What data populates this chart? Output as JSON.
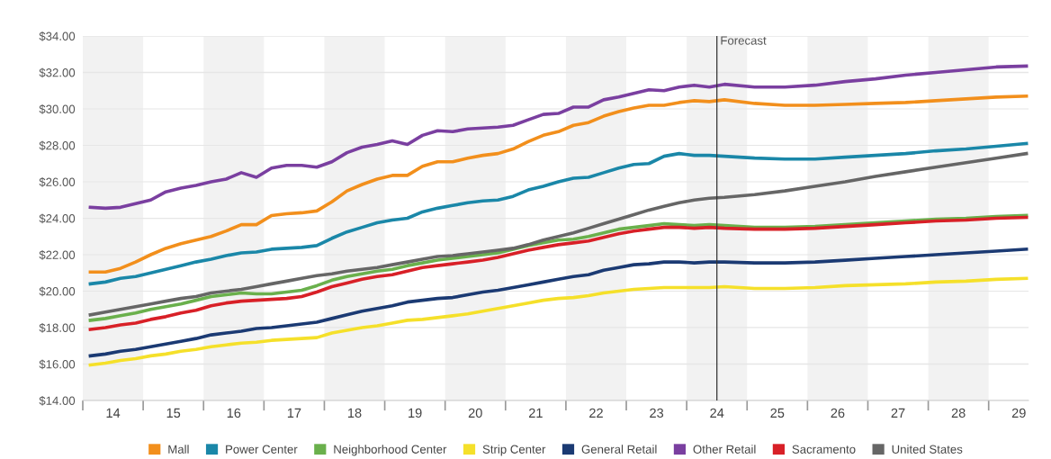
{
  "chart_data": {
    "type": "line",
    "x": [
      13.625,
      13.875,
      14.125,
      14.375,
      14.625,
      14.875,
      15.125,
      15.375,
      15.625,
      15.875,
      16.125,
      16.375,
      16.625,
      16.875,
      17.125,
      17.375,
      17.625,
      17.875,
      18.125,
      18.375,
      18.625,
      18.875,
      19.125,
      19.375,
      19.625,
      19.875,
      20.125,
      20.375,
      20.625,
      20.875,
      21.125,
      21.375,
      21.625,
      21.875,
      22.125,
      22.375,
      22.625,
      22.875,
      23.125,
      23.375,
      23.625,
      23.875,
      24.125,
      24.625,
      25.125,
      25.625,
      26.125,
      26.625,
      27.125,
      27.625,
      28.125,
      28.625,
      29.125
    ],
    "series": [
      {
        "name": "Mall",
        "color": "#f28f1c",
        "values": [
          21.05,
          21.05,
          21.25,
          21.6,
          22.0,
          22.35,
          22.6,
          22.8,
          23.0,
          23.3,
          23.65,
          23.65,
          24.15,
          24.25,
          24.3,
          24.4,
          24.9,
          25.5,
          25.85,
          26.15,
          26.35,
          26.35,
          26.85,
          27.1,
          27.1,
          27.3,
          27.45,
          27.55,
          27.8,
          28.2,
          28.55,
          28.75,
          29.1,
          29.25,
          29.6,
          29.85,
          30.05,
          30.2,
          30.2,
          30.35,
          30.45,
          30.4,
          30.5,
          30.3,
          30.2,
          30.2,
          30.25,
          30.3,
          30.35,
          30.45,
          30.55,
          30.65,
          30.7
        ]
      },
      {
        "name": "Power Center",
        "color": "#1a87a8",
        "values": [
          20.4,
          20.5,
          20.7,
          20.8,
          21.0,
          21.2,
          21.4,
          21.6,
          21.75,
          21.95,
          22.1,
          22.15,
          22.3,
          22.35,
          22.4,
          22.5,
          22.9,
          23.25,
          23.5,
          23.75,
          23.9,
          24.0,
          24.35,
          24.55,
          24.7,
          24.85,
          24.95,
          25.0,
          25.2,
          25.55,
          25.75,
          26.0,
          26.2,
          26.25,
          26.5,
          26.75,
          26.95,
          27.0,
          27.4,
          27.55,
          27.45,
          27.45,
          27.4,
          27.3,
          27.25,
          27.25,
          27.35,
          27.45,
          27.55,
          27.7,
          27.8,
          27.95,
          28.1
        ]
      },
      {
        "name": "Neighborhood Center",
        "color": "#6ab04c",
        "values": [
          18.4,
          18.5,
          18.65,
          18.8,
          19.0,
          19.15,
          19.3,
          19.5,
          19.7,
          19.8,
          19.9,
          19.85,
          19.85,
          19.95,
          20.05,
          20.3,
          20.6,
          20.8,
          20.95,
          21.1,
          21.2,
          21.4,
          21.55,
          21.7,
          21.8,
          21.9,
          22.0,
          22.1,
          22.3,
          22.5,
          22.65,
          22.8,
          22.85,
          23.0,
          23.2,
          23.4,
          23.5,
          23.6,
          23.7,
          23.65,
          23.6,
          23.65,
          23.6,
          23.5,
          23.5,
          23.55,
          23.65,
          23.75,
          23.85,
          23.95,
          24.0,
          24.1,
          24.15
        ]
      },
      {
        "name": "Strip Center",
        "color": "#f5e02a",
        "values": [
          15.95,
          16.05,
          16.2,
          16.3,
          16.45,
          16.55,
          16.7,
          16.8,
          16.95,
          17.05,
          17.15,
          17.2,
          17.3,
          17.35,
          17.4,
          17.45,
          17.7,
          17.85,
          18.0,
          18.1,
          18.25,
          18.4,
          18.45,
          18.55,
          18.65,
          18.75,
          18.9,
          19.05,
          19.2,
          19.35,
          19.5,
          19.6,
          19.65,
          19.75,
          19.9,
          20.0,
          20.1,
          20.15,
          20.2,
          20.2,
          20.2,
          20.2,
          20.25,
          20.15,
          20.15,
          20.2,
          20.3,
          20.35,
          20.4,
          20.5,
          20.55,
          20.65,
          20.7
        ]
      },
      {
        "name": "General Retail",
        "color": "#1b3a73",
        "values": [
          16.45,
          16.55,
          16.7,
          16.8,
          16.95,
          17.1,
          17.25,
          17.4,
          17.6,
          17.7,
          17.8,
          17.95,
          18.0,
          18.1,
          18.2,
          18.3,
          18.5,
          18.7,
          18.9,
          19.05,
          19.2,
          19.4,
          19.5,
          19.6,
          19.65,
          19.8,
          19.95,
          20.05,
          20.2,
          20.35,
          20.5,
          20.65,
          20.8,
          20.9,
          21.15,
          21.3,
          21.45,
          21.5,
          21.6,
          21.6,
          21.55,
          21.6,
          21.6,
          21.55,
          21.55,
          21.6,
          21.7,
          21.8,
          21.9,
          22.0,
          22.1,
          22.2,
          22.3
        ]
      },
      {
        "name": "Other Retail",
        "color": "#7a3fa0",
        "values": [
          24.6,
          24.55,
          24.6,
          24.8,
          25.0,
          25.45,
          25.65,
          25.8,
          26.0,
          26.15,
          26.5,
          26.25,
          26.75,
          26.9,
          26.9,
          26.8,
          27.1,
          27.6,
          27.9,
          28.05,
          28.25,
          28.05,
          28.55,
          28.8,
          28.75,
          28.9,
          28.95,
          29.0,
          29.1,
          29.4,
          29.7,
          29.75,
          30.1,
          30.1,
          30.5,
          30.65,
          30.85,
          31.05,
          31.0,
          31.2,
          31.3,
          31.2,
          31.35,
          31.2,
          31.2,
          31.3,
          31.5,
          31.65,
          31.85,
          32.0,
          32.15,
          32.3,
          32.35
        ]
      },
      {
        "name": "Sacramento",
        "color": "#d82027",
        "values": [
          17.9,
          18.0,
          18.15,
          18.25,
          18.45,
          18.6,
          18.8,
          18.95,
          19.2,
          19.35,
          19.45,
          19.5,
          19.55,
          19.6,
          19.7,
          19.95,
          20.25,
          20.45,
          20.65,
          20.8,
          20.9,
          21.1,
          21.3,
          21.4,
          21.5,
          21.6,
          21.7,
          21.85,
          22.05,
          22.25,
          22.4,
          22.55,
          22.65,
          22.75,
          22.95,
          23.15,
          23.3,
          23.4,
          23.5,
          23.5,
          23.45,
          23.5,
          23.45,
          23.4,
          23.4,
          23.45,
          23.55,
          23.65,
          23.75,
          23.85,
          23.9,
          24.0,
          24.05
        ]
      },
      {
        "name": "United States",
        "color": "#666666",
        "values": [
          18.7,
          18.85,
          19.0,
          19.15,
          19.3,
          19.45,
          19.6,
          19.7,
          19.9,
          20.0,
          20.1,
          20.25,
          20.4,
          20.55,
          20.7,
          20.85,
          20.95,
          21.1,
          21.2,
          21.3,
          21.45,
          21.6,
          21.75,
          21.9,
          21.95,
          22.05,
          22.15,
          22.25,
          22.35,
          22.55,
          22.8,
          23.0,
          23.2,
          23.45,
          23.7,
          23.95,
          24.2,
          24.45,
          24.65,
          24.85,
          25.0,
          25.1,
          25.15,
          25.3,
          25.5,
          25.75,
          26.0,
          26.3,
          26.55,
          26.8,
          27.05,
          27.3,
          27.55
        ]
      }
    ],
    "xlim": [
      13.5,
      29.16
    ],
    "xticks": [
      {
        "value": 13.5,
        "label": null
      },
      {
        "value": 14.5,
        "label": null
      },
      {
        "value": 15.5,
        "label": null
      },
      {
        "value": 16.5,
        "label": null
      },
      {
        "value": 17.5,
        "label": null
      },
      {
        "value": 18.5,
        "label": null
      },
      {
        "value": 19.5,
        "label": null
      },
      {
        "value": 20.5,
        "label": null
      },
      {
        "value": 21.5,
        "label": null
      },
      {
        "value": 22.5,
        "label": null
      },
      {
        "value": 23.5,
        "label": null
      },
      {
        "value": 24.5,
        "label": null
      },
      {
        "value": 25.5,
        "label": null
      },
      {
        "value": 26.5,
        "label": null
      },
      {
        "value": 27.5,
        "label": null
      },
      {
        "value": 28.5,
        "label": null
      },
      14,
      15,
      16,
      17,
      18,
      19,
      20,
      21,
      22,
      23,
      24,
      25,
      26,
      27,
      28,
      29
    ],
    "ylim": [
      14,
      34
    ],
    "yticks": [
      {
        "value": 14,
        "label": "$14.00"
      },
      {
        "value": 16,
        "label": "$16.00"
      },
      {
        "value": 18,
        "label": "$18.00"
      },
      {
        "value": 20,
        "label": "$20.00"
      },
      {
        "value": 22,
        "label": "$22.00"
      },
      {
        "value": 24,
        "label": "$24.00"
      },
      {
        "value": 26,
        "label": "$26.00"
      },
      {
        "value": 28,
        "label": "$28.00"
      },
      {
        "value": 30,
        "label": "$30.00"
      },
      {
        "value": 32,
        "label": "$32.00"
      },
      {
        "value": 34,
        "label": "$34.00"
      }
    ],
    "grid": "y",
    "legend": "bottom",
    "marker": "none",
    "line_style": "solid",
    "ref_lines": [
      {
        "axis": "x",
        "value": 24,
        "label": "Forecast",
        "color": "#333333"
      }
    ],
    "bands": [
      {
        "axis": "x",
        "from": 13.5,
        "to": 14.5,
        "color": "#f2f2f2"
      },
      {
        "axis": "x",
        "from": 15.5,
        "to": 16.5,
        "color": "#f2f2f2"
      },
      {
        "axis": "x",
        "from": 17.5,
        "to": 18.5,
        "color": "#f2f2f2"
      },
      {
        "axis": "x",
        "from": 19.5,
        "to": 20.5,
        "color": "#f2f2f2"
      },
      {
        "axis": "x",
        "from": 21.5,
        "to": 22.5,
        "color": "#f2f2f2"
      },
      {
        "axis": "x",
        "from": 23.5,
        "to": 24.5,
        "color": "#f2f2f2"
      },
      {
        "axis": "x",
        "from": 25.5,
        "to": 26.5,
        "color": "#f2f2f2"
      },
      {
        "axis": "x",
        "from": 27.5,
        "to": 28.5,
        "color": "#f2f2f2"
      }
    ]
  }
}
